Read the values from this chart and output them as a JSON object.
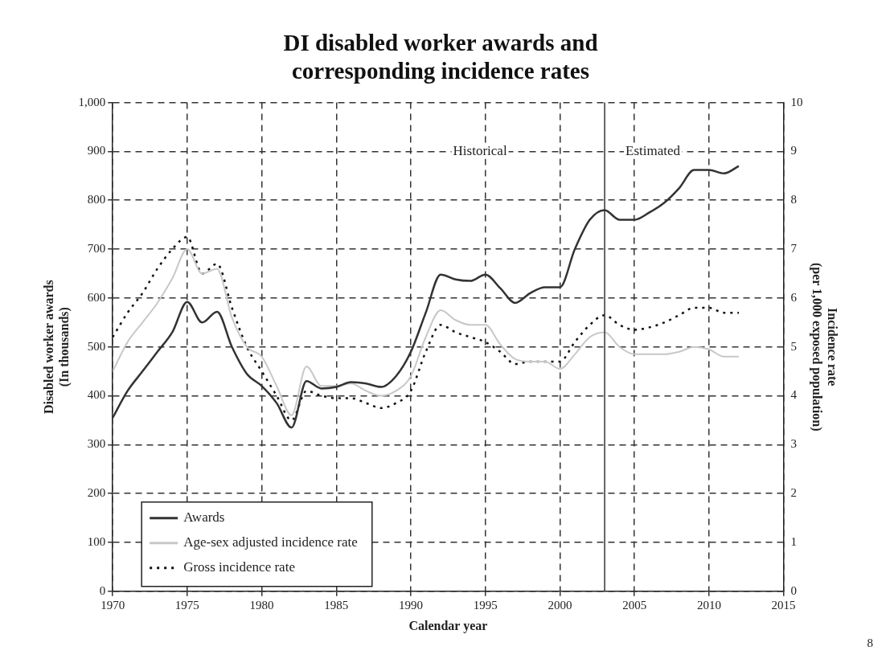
{
  "chart_data": {
    "type": "line",
    "title": "DI disabled worker awards and\ncorresponding incidence rates",
    "xlabel": "Calendar year",
    "ylabel": "Disabled worker awards\n(In thousands)",
    "y2label": "Incidence rate\n(per 1,000 exposed population)",
    "x": [
      1970,
      1971,
      1972,
      1973,
      1974,
      1975,
      1976,
      1977,
      1978,
      1979,
      1980,
      1981,
      1982,
      1983,
      1984,
      1985,
      1986,
      1987,
      1988,
      1989,
      1990,
      1991,
      1992,
      1993,
      1994,
      1995,
      1996,
      1997,
      1998,
      1999,
      2000,
      2001,
      2002,
      2003,
      2004,
      2005,
      2006,
      2007,
      2008,
      2009,
      2010,
      2011,
      2012
    ],
    "series": [
      {
        "name": "Awards",
        "color": "#333333",
        "line_style": "solid",
        "values": [
          355,
          410,
          450,
          490,
          530,
          592,
          550,
          572,
          500,
          445,
          420,
          385,
          335,
          430,
          415,
          418,
          428,
          425,
          418,
          440,
          490,
          570,
          648,
          638,
          635,
          648,
          620,
          590,
          610,
          622,
          622,
          700,
          760,
          780,
          760,
          760,
          775,
          795,
          825,
          862,
          862,
          855,
          870
        ]
      },
      {
        "name": "Age-sex adjusted incidence rate",
        "color": "#c8c8c8",
        "axis": "y2",
        "line_style": "solid",
        "values": [
          4.5,
          5.1,
          5.5,
          5.9,
          6.4,
          7.0,
          6.5,
          6.6,
          5.6,
          5.0,
          4.8,
          4.2,
          3.6,
          4.6,
          4.2,
          4.2,
          4.25,
          4.1,
          4.0,
          4.1,
          4.4,
          5.2,
          5.75,
          5.55,
          5.45,
          5.45,
          5.05,
          4.75,
          4.7,
          4.7,
          4.55,
          4.85,
          5.2,
          5.3,
          5.0,
          4.85,
          4.85,
          4.85,
          4.9,
          5.0,
          4.95,
          4.8,
          4.8
        ]
      },
      {
        "name": "Gross incidence rate",
        "color": "#111111",
        "axis": "y2",
        "line_style": "dotted",
        "values": [
          5.2,
          5.7,
          6.1,
          6.6,
          7.0,
          7.25,
          6.5,
          6.7,
          5.8,
          5.0,
          4.5,
          4.0,
          3.5,
          4.1,
          4.0,
          3.95,
          3.95,
          3.85,
          3.75,
          3.85,
          4.1,
          4.9,
          5.45,
          5.3,
          5.2,
          5.1,
          4.9,
          4.65,
          4.7,
          4.7,
          4.7,
          5.1,
          5.45,
          5.65,
          5.45,
          5.35,
          5.4,
          5.5,
          5.65,
          5.8,
          5.8,
          5.7,
          5.7
        ]
      }
    ],
    "xlim": [
      1970,
      2015
    ],
    "xticks": [
      1970,
      1975,
      1980,
      1985,
      1990,
      1995,
      2000,
      2005,
      2010,
      2015
    ],
    "ylim": [
      0,
      1000
    ],
    "yticks": [
      0,
      100,
      200,
      300,
      400,
      500,
      600,
      700,
      800,
      900,
      {
        "value": 1000,
        "label": "1,000"
      }
    ],
    "y2lim": [
      0,
      10
    ],
    "y2ticks": [
      0,
      1,
      2,
      3,
      4,
      5,
      6,
      7,
      8,
      9,
      10
    ],
    "ref_lines": [
      {
        "axis": "x",
        "value": 2003,
        "color": "#333333",
        "line_style": "solid"
      }
    ],
    "annotations": [
      "Historical",
      "Estimated",
      "8"
    ],
    "grid": true,
    "legend": "bottom left",
    "marker": "none"
  }
}
